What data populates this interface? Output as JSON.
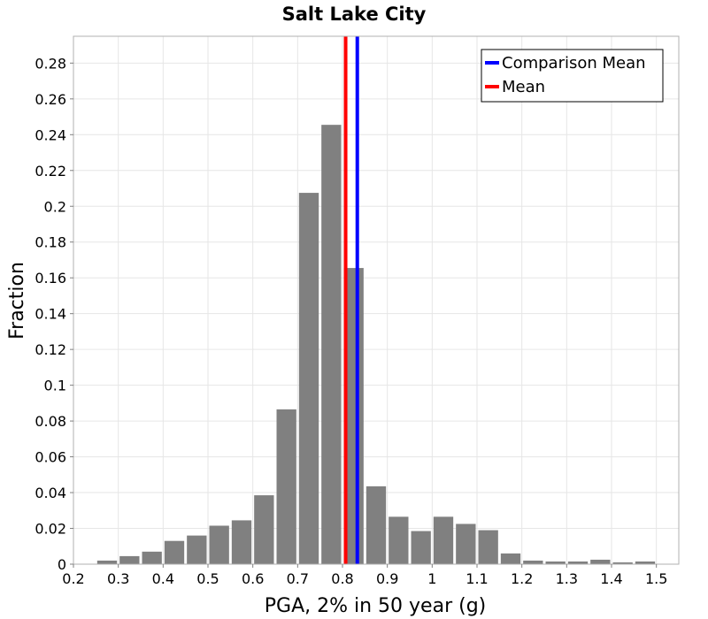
{
  "chart_data": {
    "type": "bar",
    "title": "Salt Lake City",
    "xlabel": "PGA, 2% in 50 year (g)",
    "ylabel": "Fraction",
    "xlim": [
      0.2,
      1.55
    ],
    "ylim": [
      0,
      0.295
    ],
    "x_ticks": [
      "0.2",
      "0.3",
      "0.4",
      "0.5",
      "0.6",
      "0.7",
      "0.8",
      "0.9",
      "1",
      "1.1",
      "1.2",
      "1.3",
      "1.4",
      "1.5"
    ],
    "x_tick_values": [
      0.2,
      0.3,
      0.4,
      0.5,
      0.6,
      0.7,
      0.8,
      0.9,
      1.0,
      1.1,
      1.2,
      1.3,
      1.4,
      1.5
    ],
    "y_ticks": [
      "0",
      "0.02",
      "0.04",
      "0.06",
      "0.08",
      "0.1",
      "0.12",
      "0.14",
      "0.16",
      "0.18",
      "0.2",
      "0.22",
      "0.24",
      "0.26",
      "0.28"
    ],
    "y_tick_values": [
      0,
      0.02,
      0.04,
      0.06,
      0.08,
      0.1,
      0.12,
      0.14,
      0.16,
      0.18,
      0.2,
      0.22,
      0.24,
      0.26,
      0.28
    ],
    "bin_width": 0.05,
    "bin_centers": [
      0.275,
      0.325,
      0.375,
      0.425,
      0.475,
      0.525,
      0.575,
      0.625,
      0.675,
      0.725,
      0.775,
      0.825,
      0.875,
      0.925,
      0.975,
      1.025,
      1.075,
      1.125,
      1.175,
      1.225,
      1.275,
      1.325,
      1.375,
      1.425,
      1.475
    ],
    "values": [
      0.002,
      0.0045,
      0.007,
      0.013,
      0.016,
      0.0215,
      0.0245,
      0.0385,
      0.0865,
      0.2075,
      0.2455,
      0.1655,
      0.0435,
      0.0265,
      0.0185,
      0.0265,
      0.0225,
      0.019,
      0.006,
      0.002,
      0.0015,
      0.0015,
      0.0025,
      0.001,
      0.0015
    ],
    "bar_color": "#808080",
    "vlines": [
      {
        "name": "Mean",
        "x": 0.807,
        "color": "#ff0000"
      },
      {
        "name": "Comparison Mean",
        "x": 0.833,
        "color": "#0000ff"
      }
    ],
    "legend": {
      "position": "top-right",
      "entries": [
        {
          "label": "Comparison Mean",
          "color": "#0000ff"
        },
        {
          "label": "Mean",
          "color": "#ff0000"
        }
      ]
    },
    "grid": true
  }
}
